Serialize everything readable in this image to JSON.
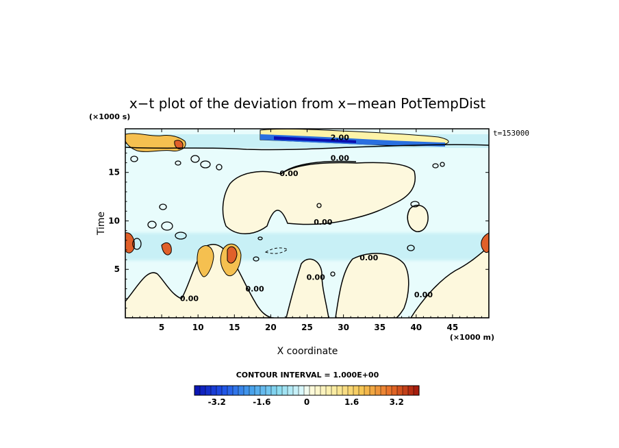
{
  "chart_data": {
    "type": "heatmap",
    "title": "x−t plot of the deviation from x−mean PotTempDist",
    "xlabel": "X coordinate",
    "ylabel": "Time",
    "x_unit": "(×1000 m)",
    "y_unit": "(×1000 s)",
    "xlim": [
      0,
      50
    ],
    "ylim": [
      0,
      19.5
    ],
    "x_ticks": [
      "5",
      "10",
      "15",
      "20",
      "25",
      "30",
      "35",
      "40",
      "45"
    ],
    "x_tick_values": [
      5,
      10,
      15,
      20,
      25,
      30,
      35,
      40,
      45
    ],
    "y_ticks": [
      "5",
      "10",
      "15"
    ],
    "y_tick_values": [
      5,
      10,
      15
    ],
    "time_label": "t=153000",
    "contour_interval": "CONTOUR INTERVAL = 1.000E+00",
    "contour_labels": [
      {
        "text": "0.00",
        "x": 29.5,
        "y": 16.5
      },
      {
        "text": "0.00",
        "x": 22.5,
        "y": 14.9
      },
      {
        "text": "0.00",
        "x": 27.2,
        "y": 9.9
      },
      {
        "text": "0.00",
        "x": 33.5,
        "y": 6.2
      },
      {
        "text": "2.00",
        "x": 29.5,
        "y": 18.6
      },
      {
        "text": "0.00",
        "x": 8.8,
        "y": 2.0
      },
      {
        "text": "0.00",
        "x": 17.8,
        "y": 3.0
      },
      {
        "text": "0.00",
        "x": 26.2,
        "y": 4.2
      },
      {
        "text": "0.00",
        "x": 41.0,
        "y": 2.4
      }
    ],
    "colorbar": {
      "min": -4,
      "max": 4,
      "ticks": [
        "-3.2",
        "-1.6",
        "0",
        "1.6",
        "3.2"
      ],
      "tick_values": [
        -3.2,
        -1.6,
        0,
        1.6,
        3.2
      ]
    },
    "colors": {
      "background_field": "#e8fcfc",
      "warm_light": "#fdf8dd",
      "warm_mid": "#f5c050",
      "warm_strong": "#e0602a",
      "warm_extreme": "#b42010",
      "cool_light": "#c2eef6",
      "cool_mid": "#7fd4ee",
      "cool_strong": "#2a70e0",
      "cool_extreme": "#0a10b0"
    }
  }
}
